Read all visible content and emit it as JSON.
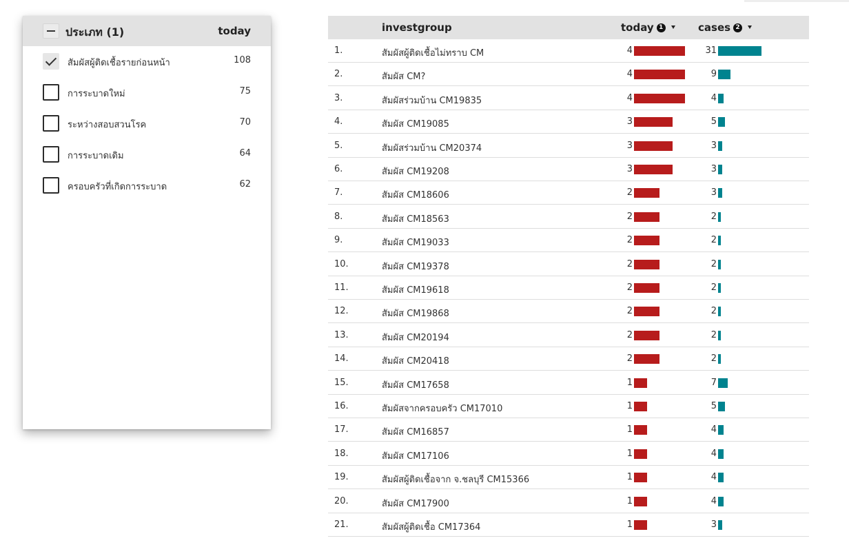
{
  "filter": {
    "title": "ประเภท (1)",
    "column": "today",
    "items": [
      {
        "label": "สัมผัสผู้ติดเชื้อรายก่อนหน้า",
        "value": "108",
        "checked": true
      },
      {
        "label": "การระบาดใหม่",
        "value": "75",
        "checked": false
      },
      {
        "label": "ระหว่างสอบสวนโรค",
        "value": "70",
        "checked": false
      },
      {
        "label": "การระบาดเดิม",
        "value": "64",
        "checked": false
      },
      {
        "label": "ครอบครัวที่เกิดการระบาด",
        "value": "62",
        "checked": false
      }
    ]
  },
  "table": {
    "columns": {
      "group": "investgroup",
      "today": "today",
      "today_badge": "1",
      "cases": "cases",
      "cases_badge": "2"
    },
    "colors": {
      "today_bar": "#b71c1c",
      "cases_bar": "#00838f"
    },
    "rows": [
      {
        "idx": "1.",
        "name": "สัมผัสผู้ติดเชื้อไม่ทราบ CM",
        "today": 4,
        "cases": 31
      },
      {
        "idx": "2.",
        "name": "สัมผัส CM?",
        "today": 4,
        "cases": 9
      },
      {
        "idx": "3.",
        "name": "สัมผัสร่วมบ้าน CM19835",
        "today": 4,
        "cases": 4
      },
      {
        "idx": "4.",
        "name": "สัมผัส CM19085",
        "today": 3,
        "cases": 5
      },
      {
        "idx": "5.",
        "name": "สัมผัสร่วมบ้าน CM20374",
        "today": 3,
        "cases": 3
      },
      {
        "idx": "6.",
        "name": "สัมผัส CM19208",
        "today": 3,
        "cases": 3
      },
      {
        "idx": "7.",
        "name": "สัมผัส CM18606",
        "today": 2,
        "cases": 3
      },
      {
        "idx": "8.",
        "name": "สัมผัส CM18563",
        "today": 2,
        "cases": 2
      },
      {
        "idx": "9.",
        "name": "สัมผัส CM19033",
        "today": 2,
        "cases": 2
      },
      {
        "idx": "10.",
        "name": "สัมผัส CM19378",
        "today": 2,
        "cases": 2
      },
      {
        "idx": "11.",
        "name": "สัมผัส CM19618",
        "today": 2,
        "cases": 2
      },
      {
        "idx": "12.",
        "name": "สัมผัส CM19868",
        "today": 2,
        "cases": 2
      },
      {
        "idx": "13.",
        "name": "สัมผัส CM20194",
        "today": 2,
        "cases": 2
      },
      {
        "idx": "14.",
        "name": "สัมผัส CM20418",
        "today": 2,
        "cases": 2
      },
      {
        "idx": "15.",
        "name": "สัมผัส CM17658",
        "today": 1,
        "cases": 7
      },
      {
        "idx": "16.",
        "name": "สัมผัสจากครอบครัว CM17010",
        "today": 1,
        "cases": 5
      },
      {
        "idx": "17.",
        "name": "สัมผัส CM16857",
        "today": 1,
        "cases": 4
      },
      {
        "idx": "18.",
        "name": "สัมผัส CM17106",
        "today": 1,
        "cases": 4
      },
      {
        "idx": "19.",
        "name": "สัมผัสผู้ติดเชื้อจาก จ.ชลบุรี CM15366",
        "today": 1,
        "cases": 4
      },
      {
        "idx": "20.",
        "name": "สัมผัส CM17900",
        "today": 1,
        "cases": 4
      },
      {
        "idx": "21.",
        "name": "สัมผัสผู้ติดเชื้อ CM17364",
        "today": 1,
        "cases": 3
      }
    ]
  }
}
